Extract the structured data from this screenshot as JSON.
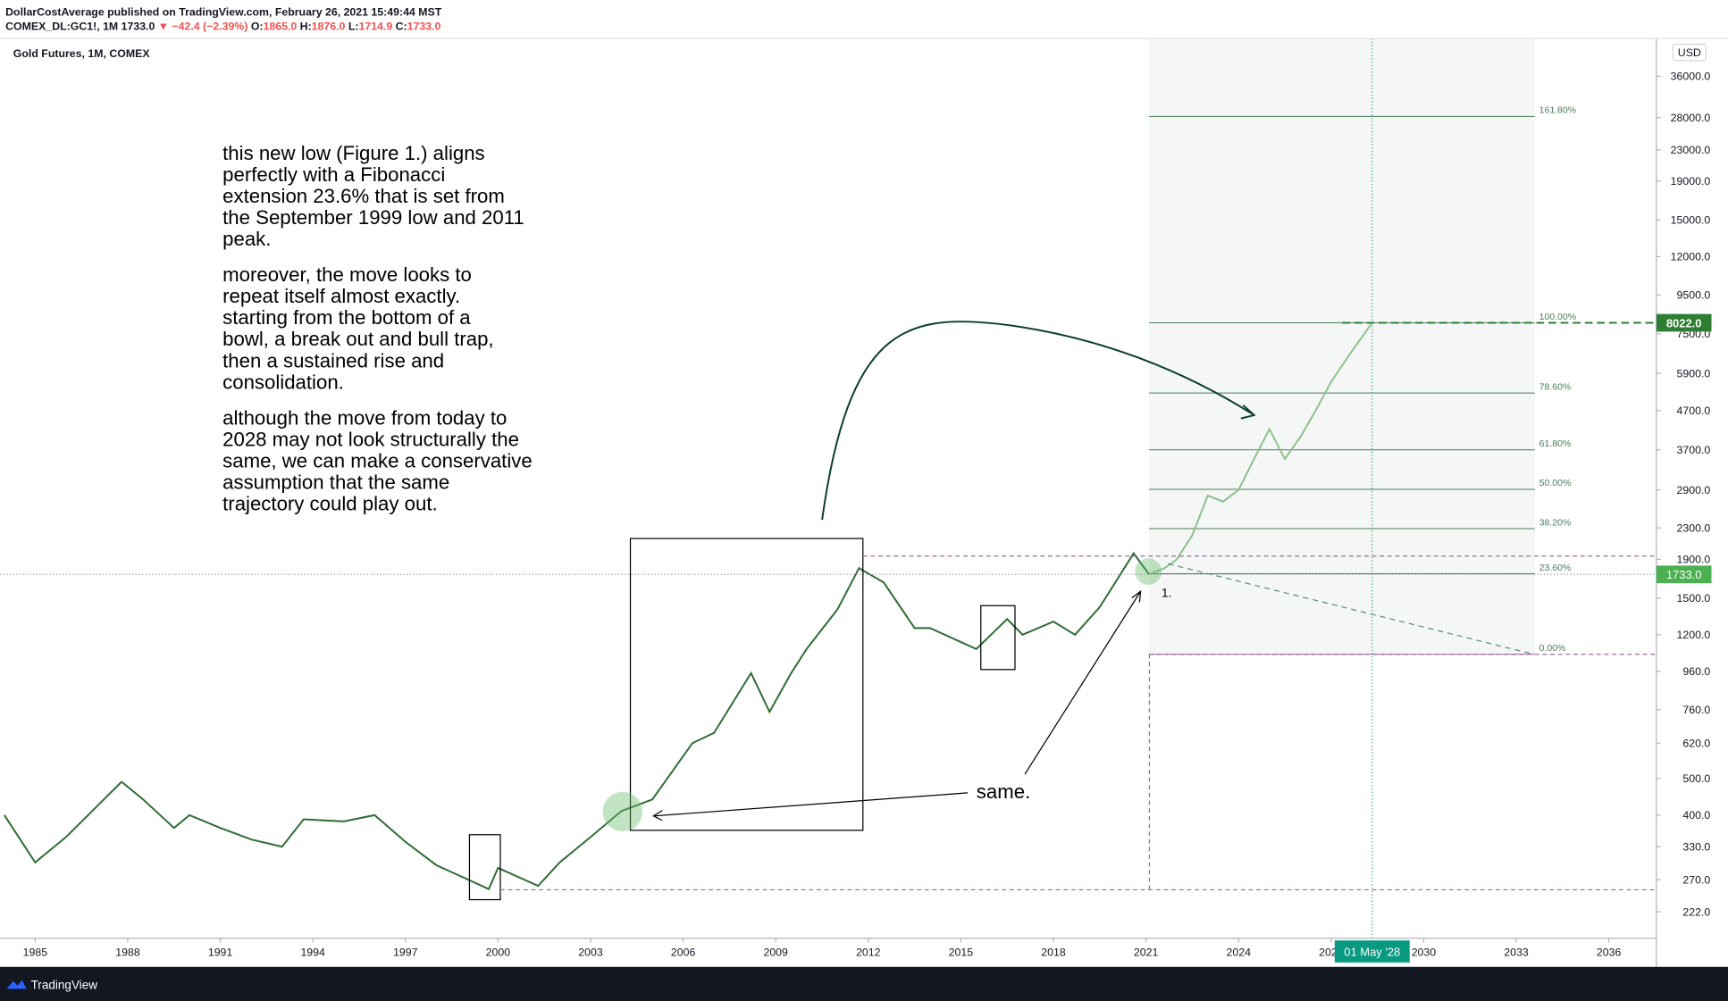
{
  "header": {
    "line1": "DollarCostAverage published on TradingView.com, February 26, 2021 15:49:44 MST",
    "line2": [
      {
        "text": "COMEX_DL:GC1!, 1M 1733.0 ",
        "color": "#131722"
      },
      {
        "text": "▼ −42.4 (−2.39%) ",
        "color": "#ef5350"
      },
      {
        "text": "O:",
        "color": "#131722"
      },
      {
        "text": "1865.0 ",
        "color": "#ef5350"
      },
      {
        "text": "H:",
        "color": "#131722"
      },
      {
        "text": "1876.0 ",
        "color": "#ef5350"
      },
      {
        "text": "L:",
        "color": "#131722"
      },
      {
        "text": "1714.9 ",
        "color": "#ef5350"
      },
      {
        "text": "C:",
        "color": "#131722"
      },
      {
        "text": "1733.0",
        "color": "#ef5350"
      }
    ]
  },
  "footer": {
    "brand": "TradingView"
  },
  "chart_data": {
    "type": "line",
    "title": "Gold Futures, 1M, COMEX",
    "currency": "USD",
    "log_scale": true,
    "series": [
      {
        "color": "#2e6b34",
        "x": [
          1984.0,
          1985.0,
          1986.0,
          1987.8,
          1988.5,
          1989.5,
          1990.0,
          1991.0,
          1992.0,
          1993.0,
          1993.7,
          1995.0,
          1996.0,
          1997.0,
          1998.0,
          1999.7,
          2000.0,
          2001.3,
          2002.0,
          2003.0,
          2004.0,
          2005.0,
          2006.3,
          2007.0,
          2008.2,
          2008.8,
          2009.5,
          2010.0,
          2011.0,
          2011.7,
          2012.5,
          2013.5,
          2014.0,
          2015.5,
          2016.5,
          2017.0,
          2018.0,
          2018.7,
          2019.5,
          2020.6,
          2021.1
        ],
        "values": [
          400,
          300,
          350,
          490,
          440,
          370,
          400,
          370,
          345,
          330,
          390,
          385,
          400,
          340,
          295,
          255,
          290,
          260,
          300,
          350,
          410,
          440,
          620,
          660,
          950,
          750,
          950,
          1100,
          1400,
          1800,
          1650,
          1250,
          1250,
          1100,
          1320,
          1200,
          1300,
          1200,
          1420,
          1970,
          1733
        ]
      },
      {
        "color": "#8fbf8f",
        "x": [
          2021.1,
          2021.6,
          2022.0,
          2022.5,
          2023.0,
          2023.5,
          2024.0,
          2024.5,
          2025.0,
          2025.5,
          2026.0,
          2026.5,
          2027.0,
          2027.7,
          2028.33
        ],
        "values": [
          1733,
          1800,
          1900,
          2200,
          2800,
          2700,
          2900,
          3500,
          4200,
          3500,
          4000,
          4700,
          5600,
          6800,
          8022
        ]
      }
    ],
    "fib_levels": [
      {
        "value": 28200,
        "label": "161.80%"
      },
      {
        "value": 8022,
        "label": "100.00%"
      },
      {
        "value": 5230,
        "label": "78.60%"
      },
      {
        "value": 3700,
        "label": "61.80%"
      },
      {
        "value": 2910,
        "label": "50.00%"
      },
      {
        "value": 2290,
        "label": "38.20%"
      },
      {
        "value": 1740,
        "label": "23.60%"
      },
      {
        "value": 1065,
        "label": "0.00%"
      }
    ],
    "fib_x": [
      2021.1,
      2033.6
    ],
    "target_label": "8022.0",
    "last_label": "1733.0",
    "date_label": "01 May '28",
    "annotations": {
      "paragraphs": [
        [
          "this new low (Figure 1.) aligns",
          "perfectly with a Fibonacci",
          "extension 23.6% that is set from",
          "the September 1999 low and 2011",
          "peak."
        ],
        [
          "moreover, the move looks to",
          "repeat itself almost exactly.",
          "starting from the bottom of a",
          "bowl, a break out and bull trap,",
          "then a sustained rise and",
          "consolidation."
        ],
        [
          "although the move from today to",
          "2028 may not look structurally the",
          "same, we can make a conservative",
          "assumption that the same",
          "trajectory could play out."
        ]
      ],
      "same": "same.",
      "figure": "1."
    },
    "xlim": [
      1983.86,
      2037.54
    ],
    "ylim": [
      189,
      45300
    ],
    "xticks": [
      1985,
      1988,
      1991,
      1994,
      1997,
      2000,
      2003,
      2006,
      2009,
      2012,
      2015,
      2018,
      2021,
      2024,
      2027,
      2030,
      2033,
      2036
    ],
    "yticks": [
      {
        "value": 36000,
        "label": "36000.0"
      },
      {
        "value": 28000,
        "label": "28000.0"
      },
      {
        "value": 23000,
        "label": "23000.0"
      },
      {
        "value": 19000,
        "label": "19000.0"
      },
      {
        "value": 15000,
        "label": "15000.0"
      },
      {
        "value": 12000,
        "label": "12000.0"
      },
      {
        "value": 9500,
        "label": "9500.0"
      },
      {
        "value": 7500,
        "label": "7500.0"
      },
      {
        "value": 5900,
        "label": "5900.0"
      },
      {
        "value": 4700,
        "label": "4700.0"
      },
      {
        "value": 3700,
        "label": "3700.0"
      },
      {
        "value": 2900,
        "label": "2900.0"
      },
      {
        "value": 2300,
        "label": "2300.0"
      },
      {
        "value": 1900,
        "label": "1900.0"
      },
      {
        "value": 1500,
        "label": "1500.0"
      },
      {
        "value": 1200,
        "label": "1200.0"
      },
      {
        "value": 960,
        "label": "960.0"
      },
      {
        "value": 760,
        "label": "760.0"
      },
      {
        "value": 620,
        "label": "620.0"
      },
      {
        "value": 500,
        "label": "500.0"
      },
      {
        "value": 400,
        "label": "400.0"
      },
      {
        "value": 330,
        "label": "330.0"
      },
      {
        "value": 270,
        "label": "270.0"
      },
      {
        "value": 222,
        "label": "222.0"
      }
    ]
  }
}
